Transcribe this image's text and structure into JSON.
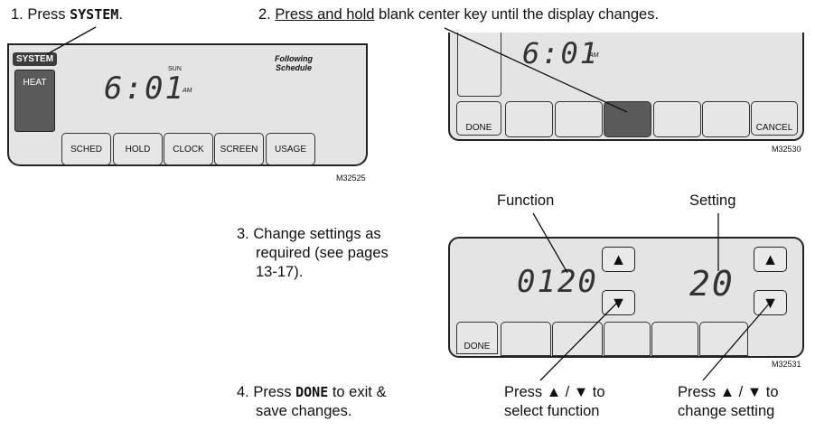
{
  "steps": {
    "s1": {
      "num": "1.",
      "pre": "Press ",
      "key": "SYSTEM",
      "post": "."
    },
    "s2": {
      "num": "2.",
      "underline": "Press and hold",
      "post": " blank center key until the display changes."
    },
    "s3": {
      "num": "3.",
      "lines": [
        "Change settings as",
        "required (see pages",
        "13-17)."
      ]
    },
    "s4": {
      "num": "4.",
      "pre": "Press ",
      "key": "DONE",
      "post1": " to exit &",
      "line2": "save changes."
    }
  },
  "panel1": {
    "system_label": "SYSTEM",
    "heat_label": "HEAT",
    "time": "6:01",
    "ampm": "AM",
    "day": "SUN",
    "schedule_line1": "Following",
    "schedule_line2": "Schedule",
    "keys": [
      "SCHED",
      "HOLD",
      "CLOCK",
      "SCREEN",
      "USAGE"
    ],
    "code": "M32525"
  },
  "panel2": {
    "time": "6:01",
    "ampm": "AM",
    "done": "DONE",
    "cancel": "CANCEL",
    "code": "M32530"
  },
  "panel3": {
    "function_label": "Function",
    "setting_label": "Setting",
    "function_value": "0120",
    "setting_value": "20",
    "done": "DONE",
    "code": "M32531",
    "up_glyph": "▲",
    "down_glyph": "▼"
  },
  "captions": {
    "left_line1": "Press ▲ / ▼ to",
    "left_line2": "select function",
    "right_line1": "Press ▲ / ▼ to",
    "right_line2": "change setting"
  },
  "colors": {
    "panel_bg": "#e4e4e4",
    "dark_key": "#5a5a5a",
    "outline": "#222222"
  }
}
